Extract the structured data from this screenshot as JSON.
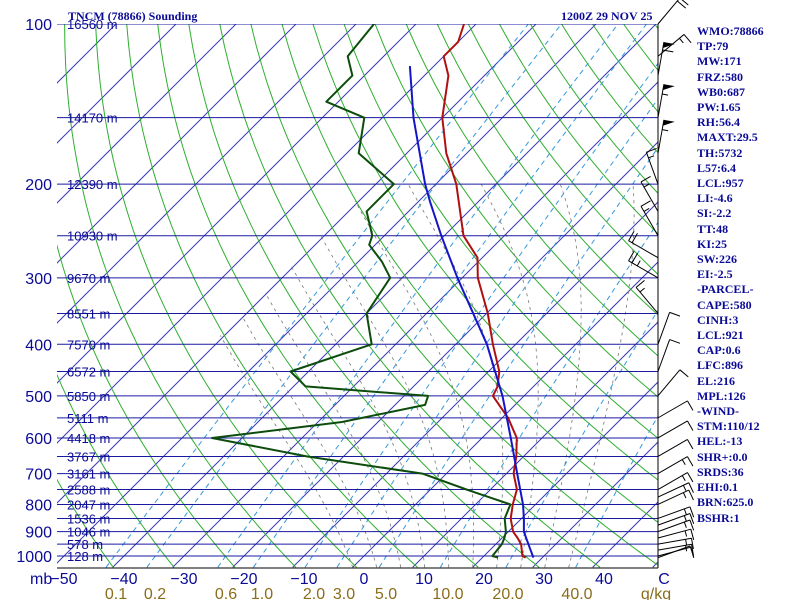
{
  "header": {
    "title": "TNCM (78866) Sounding",
    "time": "1200Z 29 NOV 25"
  },
  "side_panel": {
    "lines": [
      "WMO:78866",
      "TP:79",
      "MW:171",
      "FRZ:580",
      "WB0:687",
      "PW:1.65",
      "RH:56.4",
      "MAXT:29.5",
      "TH:5732",
      "L57:6.4",
      "LCL:957",
      "LI:-4.6",
      "SI:-2.2",
      "TT:48",
      "KI:25",
      "SW:226",
      "EI:-2.5",
      "-PARCEL-",
      "CAPE:580",
      "CINH:3",
      "LCL:921",
      "CAP:0.6",
      "LFC:896",
      "EL:216",
      "MPL:126",
      "-WIND-",
      "STM:110/12",
      "HEL:-13",
      "SHR+:0.0",
      "SRDS:36",
      "EHI:0.1",
      "BRN:625.0",
      "BSHR:1"
    ]
  },
  "colors": {
    "text_blue": "#0a0a96",
    "isobar": "#1a1aa0",
    "isotherm": "#3a3ab4",
    "dry_adiabat": "#2fae2f",
    "mixing_ratio": "#3399dd",
    "moist_adiabat": "#777777",
    "temperature": "#b01010",
    "dewpoint": "#0c4d0c",
    "parcel": "#1515c8",
    "wind_barbs": "#000000"
  },
  "chart_data": {
    "type": "skew-t",
    "y_axis_unit": "mb",
    "x_axis_unit": "C",
    "y_scale": "log",
    "pressure_levels": [
      {
        "p": 100,
        "label": "100",
        "height": "16560 m"
      },
      {
        "p": 150,
        "label": "",
        "height": "14170 m"
      },
      {
        "p": 200,
        "label": "200",
        "height": "12390 m"
      },
      {
        "p": 250,
        "label": "",
        "height": "10930 m"
      },
      {
        "p": 300,
        "label": "300",
        "height": "9670 m"
      },
      {
        "p": 350,
        "label": "",
        "height": "8551 m"
      },
      {
        "p": 400,
        "label": "400",
        "height": "7570 m"
      },
      {
        "p": 450,
        "label": "",
        "height": "6572 m"
      },
      {
        "p": 500,
        "label": "500",
        "height": "5850 m"
      },
      {
        "p": 550,
        "label": "",
        "height": "5111 m"
      },
      {
        "p": 600,
        "label": "600",
        "height": "4418 m"
      },
      {
        "p": 650,
        "label": "",
        "height": "3767 m"
      },
      {
        "p": 700,
        "label": "700",
        "height": "3161 m"
      },
      {
        "p": 750,
        "label": "",
        "height": "2588 m"
      },
      {
        "p": 800,
        "label": "800",
        "height": "2047 m"
      },
      {
        "p": 850,
        "label": "",
        "height": "1536 m"
      },
      {
        "p": 900,
        "label": "900",
        "height": "1046 m"
      },
      {
        "p": 950,
        "label": "",
        "height": "578 m"
      },
      {
        "p": 1000,
        "label": "1000",
        "height": "128 m"
      }
    ],
    "temperature_ticks": [
      {
        "t": -50,
        "label": "−50"
      },
      {
        "t": -40,
        "label": "−40"
      },
      {
        "t": -30,
        "label": "−30"
      },
      {
        "t": -20,
        "label": "−20"
      },
      {
        "t": -10,
        "label": "−10"
      },
      {
        "t": 0,
        "label": "0"
      },
      {
        "t": 10,
        "label": "10"
      },
      {
        "t": 20,
        "label": "20"
      },
      {
        "t": 30,
        "label": "30"
      },
      {
        "t": 40,
        "label": "40"
      },
      {
        "t": 50,
        "label": "C"
      }
    ],
    "mixing_ratio_ticks": [
      {
        "w": 0.1,
        "label": "0.1"
      },
      {
        "w": 0.2,
        "label": "0.2"
      },
      {
        "w": 0.6,
        "label": "0.6"
      },
      {
        "w": 1.0,
        "label": "1.0"
      },
      {
        "w": 2.0,
        "label": "2.0"
      },
      {
        "w": 3.0,
        "label": "3.0"
      },
      {
        "w": 5.0,
        "label": "5.0"
      },
      {
        "w": 10.0,
        "label": "10.0"
      },
      {
        "w": 20.0,
        "label": "20.0"
      },
      {
        "w": 40.0,
        "label": "40.0"
      },
      {
        "w": 0,
        "label": "g/kg"
      }
    ],
    "temperature_profile": [
      [
        1007,
        27.2
      ],
      [
        1000,
        26.4
      ],
      [
        950,
        24.2
      ],
      [
        925,
        22.6
      ],
      [
        900,
        20.8
      ],
      [
        850,
        18.2
      ],
      [
        800,
        16.2
      ],
      [
        750,
        14.4
      ],
      [
        700,
        11.2
      ],
      [
        650,
        8.8
      ],
      [
        600,
        5.8
      ],
      [
        550,
        1.0
      ],
      [
        500,
        -5.2
      ],
      [
        480,
        -6.0
      ],
      [
        450,
        -8.2
      ],
      [
        400,
        -13.8
      ],
      [
        350,
        -19.8
      ],
      [
        300,
        -27.4
      ],
      [
        275,
        -30.8
      ],
      [
        250,
        -36.8
      ],
      [
        200,
        -46.6
      ],
      [
        175,
        -53.4
      ],
      [
        150,
        -60.0
      ],
      [
        125,
        -66.0
      ],
      [
        115,
        -70.0
      ],
      [
        108,
        -70.0
      ],
      [
        100,
        -72.0
      ]
    ],
    "dewpoint_profile": [
      [
        1007,
        22.6
      ],
      [
        1000,
        21.4
      ],
      [
        950,
        21.0
      ],
      [
        925,
        20.4
      ],
      [
        900,
        19.6
      ],
      [
        850,
        17.2
      ],
      [
        800,
        15.8
      ],
      [
        760,
        8.0
      ],
      [
        750,
        6.0
      ],
      [
        700,
        -4.0
      ],
      [
        650,
        -26.0
      ],
      [
        600,
        -45.0
      ],
      [
        560,
        -26.0
      ],
      [
        520,
        -15.0
      ],
      [
        500,
        -16.0
      ],
      [
        480,
        -38.0
      ],
      [
        450,
        -43.0
      ],
      [
        400,
        -34.0
      ],
      [
        350,
        -40.0
      ],
      [
        300,
        -42.0
      ],
      [
        280,
        -46.0
      ],
      [
        260,
        -51.0
      ],
      [
        250,
        -52.0
      ],
      [
        225,
        -57.0
      ],
      [
        200,
        -57.0
      ],
      [
        175,
        -68.0
      ],
      [
        150,
        -73.0
      ],
      [
        140,
        -82.0
      ],
      [
        125,
        -82.0
      ],
      [
        115,
        -86.0
      ],
      [
        100,
        -87.0
      ]
    ],
    "parcel_profile": [
      [
        1007,
        28.5
      ],
      [
        957,
        25.8
      ],
      [
        900,
        22.6
      ],
      [
        850,
        20.4
      ],
      [
        800,
        17.9
      ],
      [
        700,
        11.8
      ],
      [
        600,
        4.8
      ],
      [
        500,
        -3.6
      ],
      [
        400,
        -14.8
      ],
      [
        300,
        -30.8
      ],
      [
        250,
        -40.5
      ],
      [
        216,
        -48.0
      ],
      [
        200,
        -51.8
      ],
      [
        150,
        -64.8
      ],
      [
        120,
        -74.0
      ]
    ],
    "dry_adiabats_theta_k": [
      220,
      230,
      240,
      250,
      260,
      270,
      280,
      290,
      300,
      310,
      320,
      330,
      340,
      350,
      360,
      370,
      380,
      390,
      400,
      410,
      420,
      430,
      440,
      450,
      460
    ],
    "mixing_ratio_lines_gkg": [
      0.1,
      0.2,
      0.6,
      1.0,
      2.0,
      3.0,
      5.0,
      10.0,
      20.0,
      40.0
    ],
    "moist_adiabats_start_c": [
      0,
      4,
      8,
      12,
      16,
      20,
      24,
      28,
      32,
      36
    ],
    "winds": [
      {
        "p": 1007,
        "dir": 70,
        "kt": 10
      },
      {
        "p": 1000,
        "dir": 75,
        "kt": 12
      },
      {
        "p": 975,
        "dir": 80,
        "kt": 15
      },
      {
        "p": 950,
        "dir": 80,
        "kt": 15
      },
      {
        "p": 925,
        "dir": 75,
        "kt": 15
      },
      {
        "p": 900,
        "dir": 70,
        "kt": 15
      },
      {
        "p": 875,
        "dir": 70,
        "kt": 15
      },
      {
        "p": 850,
        "dir": 70,
        "kt": 15
      },
      {
        "p": 800,
        "dir": 65,
        "kt": 15
      },
      {
        "p": 775,
        "dir": 65,
        "kt": 15
      },
      {
        "p": 750,
        "dir": 60,
        "kt": 15
      },
      {
        "p": 700,
        "dir": 60,
        "kt": 15
      },
      {
        "p": 650,
        "dir": 60,
        "kt": 10
      },
      {
        "p": 600,
        "dir": 60,
        "kt": 10
      },
      {
        "p": 550,
        "dir": 60,
        "kt": 10
      },
      {
        "p": 500,
        "dir": 40,
        "kt": 10
      },
      {
        "p": 450,
        "dir": 20,
        "kt": 10
      },
      {
        "p": 400,
        "dir": 20,
        "kt": 10
      },
      {
        "p": 350,
        "dir": 320,
        "kt": 15
      },
      {
        "p": 300,
        "dir": 300,
        "kt": 25
      },
      {
        "p": 275,
        "dir": 300,
        "kt": 20
      },
      {
        "p": 250,
        "dir": 330,
        "kt": 15
      },
      {
        "p": 225,
        "dir": 330,
        "kt": 15
      },
      {
        "p": 200,
        "dir": 340,
        "kt": 15
      },
      {
        "p": 175,
        "dir": 10,
        "kt": 55
      },
      {
        "p": 150,
        "dir": 10,
        "kt": 55
      },
      {
        "p": 125,
        "dir": 10,
        "kt": 60
      },
      {
        "p": 115,
        "dir": 50,
        "kt": 15
      },
      {
        "p": 100,
        "dir": 40,
        "kt": 20
      }
    ]
  }
}
